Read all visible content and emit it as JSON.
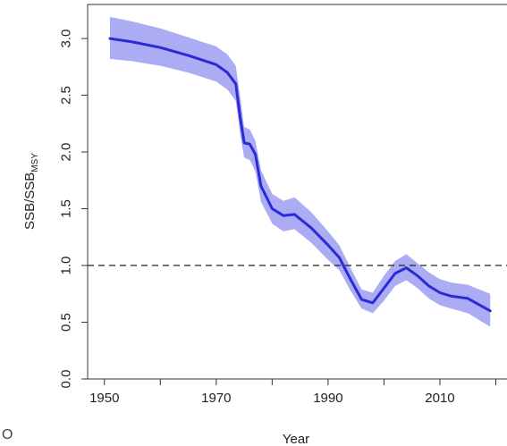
{
  "chart_data": {
    "type": "line",
    "x_label": "Year",
    "y_label_main": "SSB/SSB",
    "y_label_sub": "MSY",
    "xlim": [
      1947,
      2022
    ],
    "ylim": [
      0.0,
      3.3
    ],
    "x_ticks": [
      1950,
      1970,
      1990,
      2010
    ],
    "x_minor_ticks": [
      1960,
      1980,
      2000,
      2020
    ],
    "y_ticks": [
      0.0,
      0.5,
      1.0,
      1.5,
      2.0,
      2.5,
      3.0
    ],
    "y_tick_labels": [
      "0.0",
      "0.5",
      "1.0",
      "1.5",
      "2.0",
      "2.5",
      "3.0"
    ],
    "reference_line": {
      "y": 1.0,
      "style": "dashed",
      "color": "#222222"
    },
    "series": [
      {
        "color": "#2a2ad6",
        "band_color": "#9e9ef2",
        "points": [
          {
            "x": 1951,
            "y": 3.0,
            "lo": 2.82,
            "hi": 3.19
          },
          {
            "x": 1955,
            "y": 2.97,
            "lo": 2.8,
            "hi": 3.15
          },
          {
            "x": 1960,
            "y": 2.92,
            "lo": 2.76,
            "hi": 3.09
          },
          {
            "x": 1965,
            "y": 2.85,
            "lo": 2.7,
            "hi": 3.01
          },
          {
            "x": 1970,
            "y": 2.77,
            "lo": 2.62,
            "hi": 2.93
          },
          {
            "x": 1972,
            "y": 2.7,
            "lo": 2.55,
            "hi": 2.86
          },
          {
            "x": 1973.5,
            "y": 2.6,
            "lo": 2.45,
            "hi": 2.76
          },
          {
            "x": 1974.3,
            "y": 2.3,
            "lo": 2.15,
            "hi": 2.48
          },
          {
            "x": 1975,
            "y": 2.08,
            "lo": 1.95,
            "hi": 2.22
          },
          {
            "x": 1976,
            "y": 2.07,
            "lo": 1.93,
            "hi": 2.2
          },
          {
            "x": 1977,
            "y": 1.98,
            "lo": 1.83,
            "hi": 2.1
          },
          {
            "x": 1978,
            "y": 1.7,
            "lo": 1.56,
            "hi": 1.84
          },
          {
            "x": 1980,
            "y": 1.5,
            "lo": 1.37,
            "hi": 1.63
          },
          {
            "x": 1982,
            "y": 1.44,
            "lo": 1.3,
            "hi": 1.57
          },
          {
            "x": 1984,
            "y": 1.45,
            "lo": 1.32,
            "hi": 1.6
          },
          {
            "x": 1987,
            "y": 1.33,
            "lo": 1.2,
            "hi": 1.47
          },
          {
            "x": 1990,
            "y": 1.18,
            "lo": 1.05,
            "hi": 1.3
          },
          {
            "x": 1992,
            "y": 1.07,
            "lo": 0.96,
            "hi": 1.18
          },
          {
            "x": 1994,
            "y": 0.88,
            "lo": 0.78,
            "hi": 0.98
          },
          {
            "x": 1996,
            "y": 0.7,
            "lo": 0.62,
            "hi": 0.79
          },
          {
            "x": 1998,
            "y": 0.67,
            "lo": 0.58,
            "hi": 0.76
          },
          {
            "x": 2000,
            "y": 0.8,
            "lo": 0.69,
            "hi": 0.91
          },
          {
            "x": 2002,
            "y": 0.93,
            "lo": 0.82,
            "hi": 1.04
          },
          {
            "x": 2004,
            "y": 0.98,
            "lo": 0.87,
            "hi": 1.1
          },
          {
            "x": 2006,
            "y": 0.91,
            "lo": 0.8,
            "hi": 1.02
          },
          {
            "x": 2008,
            "y": 0.82,
            "lo": 0.71,
            "hi": 0.94
          },
          {
            "x": 2010,
            "y": 0.76,
            "lo": 0.65,
            "hi": 0.88
          },
          {
            "x": 2012,
            "y": 0.73,
            "lo": 0.62,
            "hi": 0.85
          },
          {
            "x": 2015,
            "y": 0.71,
            "lo": 0.58,
            "hi": 0.83
          },
          {
            "x": 2019,
            "y": 0.6,
            "lo": 0.46,
            "hi": 0.75
          }
        ]
      }
    ]
  },
  "corner_mark": "O"
}
